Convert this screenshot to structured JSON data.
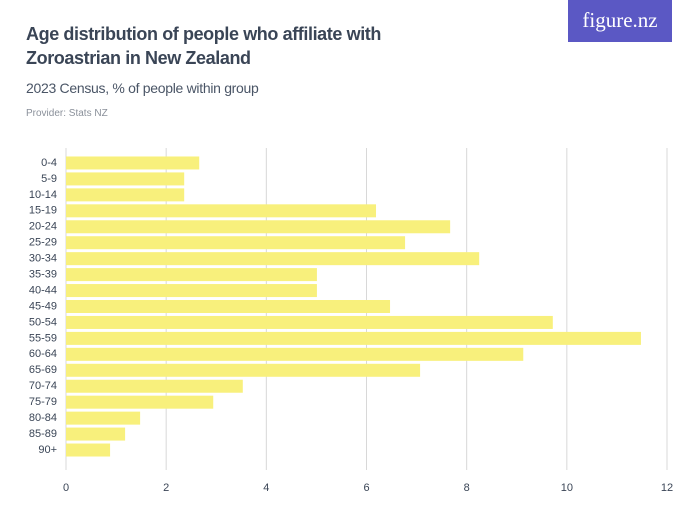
{
  "chart_data": {
    "type": "bar",
    "orientation": "horizontal",
    "title": "Age distribution of people who affiliate with Zoroastrian in New Zealand",
    "subtitle": "2023 Census, % of people within group",
    "source": "Provider: Stats NZ",
    "brand": "figure.nz",
    "categories": [
      "0-4",
      "5-9",
      "10-14",
      "15-19",
      "20-24",
      "25-29",
      "30-34",
      "35-39",
      "40-44",
      "45-49",
      "50-54",
      "55-59",
      "60-64",
      "65-69",
      "70-74",
      "75-79",
      "80-84",
      "85-89",
      "90+"
    ],
    "values": [
      2.66,
      2.36,
      2.36,
      6.19,
      7.67,
      6.77,
      8.25,
      5.01,
      5.01,
      6.47,
      9.72,
      11.48,
      9.13,
      7.07,
      3.53,
      2.94,
      1.48,
      1.18,
      0.88
    ],
    "color": "#f8f07c",
    "xlim": [
      0,
      12
    ],
    "xticks": [
      0,
      2,
      4,
      6,
      8,
      10,
      12
    ],
    "grid": true
  }
}
